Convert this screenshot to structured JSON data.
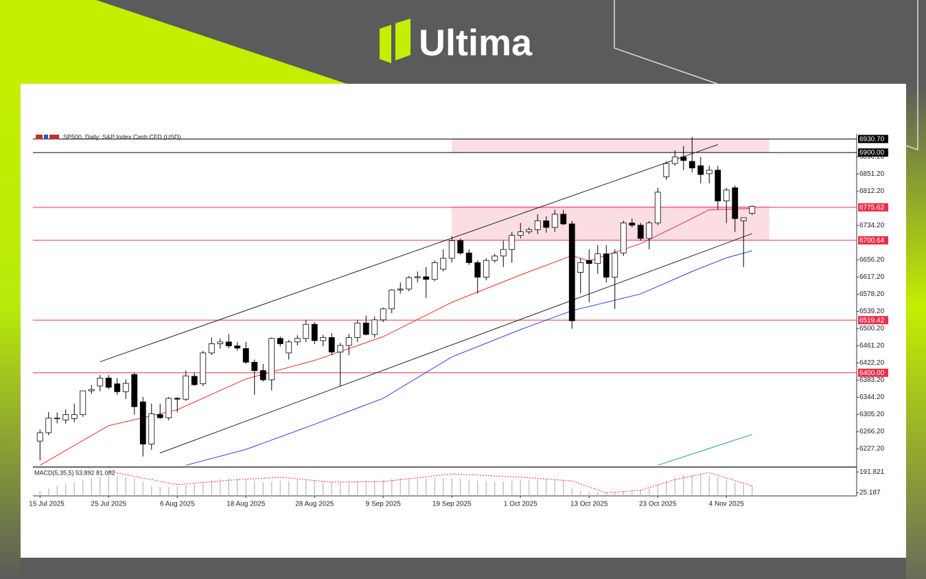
{
  "brand": "Ultima",
  "chart_data": {
    "type": "candlestick",
    "title": "SP500, Daily:  S&P Index Cash CFD (USD)",
    "categories": [
      "15 Jul 2025",
      null,
      null,
      null,
      null,
      null,
      null,
      null,
      "25 Jul 2025",
      null,
      null,
      null,
      null,
      null,
      null,
      null,
      "6 Aug 2025",
      null,
      null,
      null,
      null,
      null,
      null,
      null,
      "18 Aug 2025",
      null,
      null,
      null,
      null,
      null,
      null,
      null,
      "28 Aug 2025",
      null,
      null,
      null,
      null,
      null,
      null,
      null,
      "9 Sep 2025",
      null,
      null,
      null,
      null,
      null,
      null,
      null,
      "19 Sep 2025",
      null,
      null,
      null,
      null,
      null,
      null,
      null,
      "1 Oct 2025",
      null,
      null,
      null,
      null,
      null,
      null,
      null,
      "13 Oct 2025",
      null,
      null,
      null,
      null,
      null,
      null,
      null,
      "23 Oct 2025",
      null,
      null,
      null,
      null,
      null,
      null,
      null,
      "4 Nov 2025",
      null,
      null,
      null
    ],
    "open": [
      6245,
      6264,
      6297,
      6293,
      6296,
      6305,
      6359,
      6370,
      6388,
      6375,
      6357,
      6396,
      6334,
      6238,
      6305,
      6298,
      6342,
      6340,
      6392,
      6375,
      6445,
      6466,
      6470,
      6461,
      6455,
      6424,
      6405,
      6384,
      6478,
      6445,
      6470,
      6478,
      6510,
      6473,
      6480,
      6447,
      6462,
      6480,
      6513,
      6487,
      6520,
      6545,
      6588,
      6590,
      6616,
      6618,
      6612,
      6635,
      6660,
      6700,
      6672,
      6650,
      6617,
      6655,
      6665,
      6680,
      6712,
      6720,
      6725,
      6745,
      6730,
      6760,
      6738,
      6628,
      6655,
      6648,
      6670,
      6617,
      6672,
      6740,
      6735,
      6705,
      6740,
      6845,
      6875,
      6890,
      6880,
      6870,
      6852,
      6860,
      6790,
      6820,
      6745,
      6762
    ],
    "high": [
      6271,
      6311,
      6310,
      6317,
      6330,
      6359,
      6372,
      6395,
      6395,
      6388,
      6385,
      6400,
      6345,
      6330,
      6330,
      6345,
      6345,
      6405,
      6400,
      6450,
      6480,
      6478,
      6488,
      6470,
      6470,
      6430,
      6420,
      6480,
      6482,
      6475,
      6485,
      6520,
      6515,
      6486,
      6490,
      6468,
      6488,
      6520,
      6530,
      6528,
      6548,
      6590,
      6605,
      6620,
      6630,
      6640,
      6655,
      6680,
      6710,
      6705,
      6680,
      6655,
      6660,
      6670,
      6700,
      6720,
      6740,
      6730,
      6760,
      6755,
      6770,
      6770,
      6745,
      6660,
      6680,
      6690,
      6690,
      6680,
      6745,
      6750,
      6740,
      6745,
      6820,
      6880,
      6905,
      6915,
      6935,
      6890,
      6870,
      6870,
      6820,
      6825,
      6750,
      6780
    ],
    "low": [
      6201,
      6258,
      6285,
      6285,
      6288,
      6300,
      6352,
      6358,
      6363,
      6350,
      6340,
      6305,
      6210,
      6225,
      6295,
      6292,
      6310,
      6336,
      6370,
      6370,
      6440,
      6455,
      6455,
      6450,
      6420,
      6350,
      6380,
      6360,
      6460,
      6430,
      6462,
      6470,
      6465,
      6460,
      6440,
      6370,
      6440,
      6470,
      6485,
      6480,
      6515,
      6535,
      6580,
      6585,
      6605,
      6570,
      6608,
      6630,
      6650,
      6668,
      6645,
      6580,
      6610,
      6650,
      6640,
      6650,
      6705,
      6715,
      6715,
      6718,
      6720,
      6735,
      6500,
      6580,
      6560,
      6625,
      6605,
      6545,
      6665,
      6730,
      6700,
      6680,
      6735,
      6838,
      6870,
      6860,
      6855,
      6830,
      6830,
      6770,
      6740,
      6720,
      6640,
      6758
    ],
    "close": [
      6264,
      6297,
      6297,
      6305,
      6305,
      6359,
      6362,
      6388,
      6367,
      6357,
      6376,
      6323,
      6238,
      6307,
      6298,
      6342,
      6340,
      6393,
      6373,
      6445,
      6466,
      6470,
      6461,
      6456,
      6424,
      6405,
      6384,
      6478,
      6466,
      6470,
      6478,
      6510,
      6473,
      6480,
      6447,
      6462,
      6480,
      6513,
      6487,
      6520,
      6545,
      6588,
      6590,
      6616,
      6618,
      6612,
      6650,
      6660,
      6700,
      6672,
      6650,
      6617,
      6655,
      6665,
      6680,
      6712,
      6720,
      6725,
      6745,
      6730,
      6760,
      6738,
      6518,
      6650,
      6648,
      6670,
      6617,
      6672,
      6740,
      6735,
      6705,
      6740,
      6810,
      6875,
      6890,
      6882,
      6865,
      6850,
      6860,
      6790,
      6815,
      6750,
      6752,
      6778
    ],
    "ylim": [
      6186,
      6950
    ],
    "yticks": [
      {
        "value": 6890.2,
        "label": "6890.20"
      },
      {
        "value": 6851.2,
        "label": "6851.20"
      },
      {
        "value": 6812.2,
        "label": "6812.20"
      },
      {
        "value": 6734.2,
        "label": "6734.20"
      },
      {
        "value": 6656.2,
        "label": "6656.20"
      },
      {
        "value": 6617.2,
        "label": "6617.20"
      },
      {
        "value": 6578.2,
        "label": "6578.20"
      },
      {
        "value": 6539.2,
        "label": "6539.20"
      },
      {
        "value": 6500.2,
        "label": "6500.20"
      },
      {
        "value": 6461.2,
        "label": "6461.20"
      },
      {
        "value": 6422.2,
        "label": "6422.20"
      },
      {
        "value": 6383.2,
        "label": "6383.20"
      },
      {
        "value": 6344.2,
        "label": "6344.20"
      },
      {
        "value": 6305.2,
        "label": "6305.20"
      },
      {
        "value": 6266.2,
        "label": "6266.20"
      },
      {
        "value": 6227.2,
        "label": "6227.20"
      }
    ],
    "levels": [
      {
        "value": 6930.7,
        "label": "6930.70",
        "color": "#000000"
      },
      {
        "value": 6900,
        "label": "6900.00",
        "color": "#000000"
      },
      {
        "value": 6775.62,
        "label": "6775.62",
        "color": "#e8304a"
      },
      {
        "value": 6700.64,
        "label": "6700.64",
        "color": "#e8304a"
      },
      {
        "value": 6519.42,
        "label": "6519.42",
        "color": "#e8304a"
      },
      {
        "value": 6400,
        "label": "6400.00",
        "color": "#e8304a"
      }
    ],
    "zones": [
      {
        "x": [
          48,
          85
        ],
        "values": [
          6930.7,
          6900
        ],
        "color": "#fbdde4"
      },
      {
        "x": [
          48,
          85
        ],
        "values": [
          6779,
          6700.64
        ],
        "color": "#fbdde4"
      }
    ],
    "trendlines": [
      {
        "x": [
          7,
          79
        ],
        "values": [
          6425,
          6918
        ],
        "color": "#222222"
      },
      {
        "x": [
          14,
          83
        ],
        "values": [
          6218,
          6716
        ],
        "color": "#222222"
      }
    ],
    "moving_averages": [
      {
        "color": "#e8302a",
        "x": [
          0,
          8,
          16,
          24,
          32,
          40,
          48,
          56,
          62,
          64,
          70,
          74,
          78,
          83
        ],
        "values": [
          6190,
          6280,
          6316,
          6386,
          6428,
          6482,
          6560,
          6622,
          6666,
          6654,
          6693,
          6731,
          6770,
          6773
        ]
      },
      {
        "color": "#2a3fd8",
        "x": [
          17,
          24,
          32,
          40,
          48,
          56,
          62,
          70,
          76,
          80,
          83
        ],
        "values": [
          6190,
          6226,
          6283,
          6342,
          6436,
          6498,
          6541,
          6579,
          6630,
          6661,
          6677
        ]
      },
      {
        "color": "#1aa09a",
        "x": [
          72,
          83
        ],
        "values": [
          6190,
          6260
        ]
      }
    ],
    "macd": {
      "title": "MACD(5,35,5) 53.892 81.082",
      "ylim": [
        0,
        220
      ],
      "yticks": [
        191.821,
        25.187
      ],
      "histogram": [
        40,
        60,
        80,
        95,
        110,
        125,
        140,
        150,
        160,
        160,
        150,
        140,
        110,
        80,
        70,
        70,
        75,
        85,
        95,
        110,
        125,
        135,
        140,
        138,
        130,
        120,
        110,
        115,
        120,
        120,
        125,
        130,
        125,
        120,
        115,
        110,
        115,
        120,
        125,
        125,
        130,
        135,
        140,
        140,
        140,
        138,
        140,
        142,
        145,
        140,
        130,
        120,
        118,
        115,
        115,
        120,
        125,
        125,
        130,
        130,
        135,
        132,
        60,
        40,
        30,
        28,
        25,
        25,
        35,
        45,
        50,
        55,
        90,
        120,
        150,
        165,
        170,
        170,
        160,
        150,
        130,
        110,
        90,
        85
      ],
      "signal": {
        "color": "#e8302a",
        "x": [
          8,
          16,
          22,
          28,
          34,
          40,
          48,
          56,
          62,
          66,
          70,
          74,
          78,
          83
        ],
        "values": [
          197,
          90,
          125,
          150,
          110,
          115,
          176,
          150,
          120,
          25,
          45,
          130,
          187,
          80
        ]
      }
    }
  }
}
